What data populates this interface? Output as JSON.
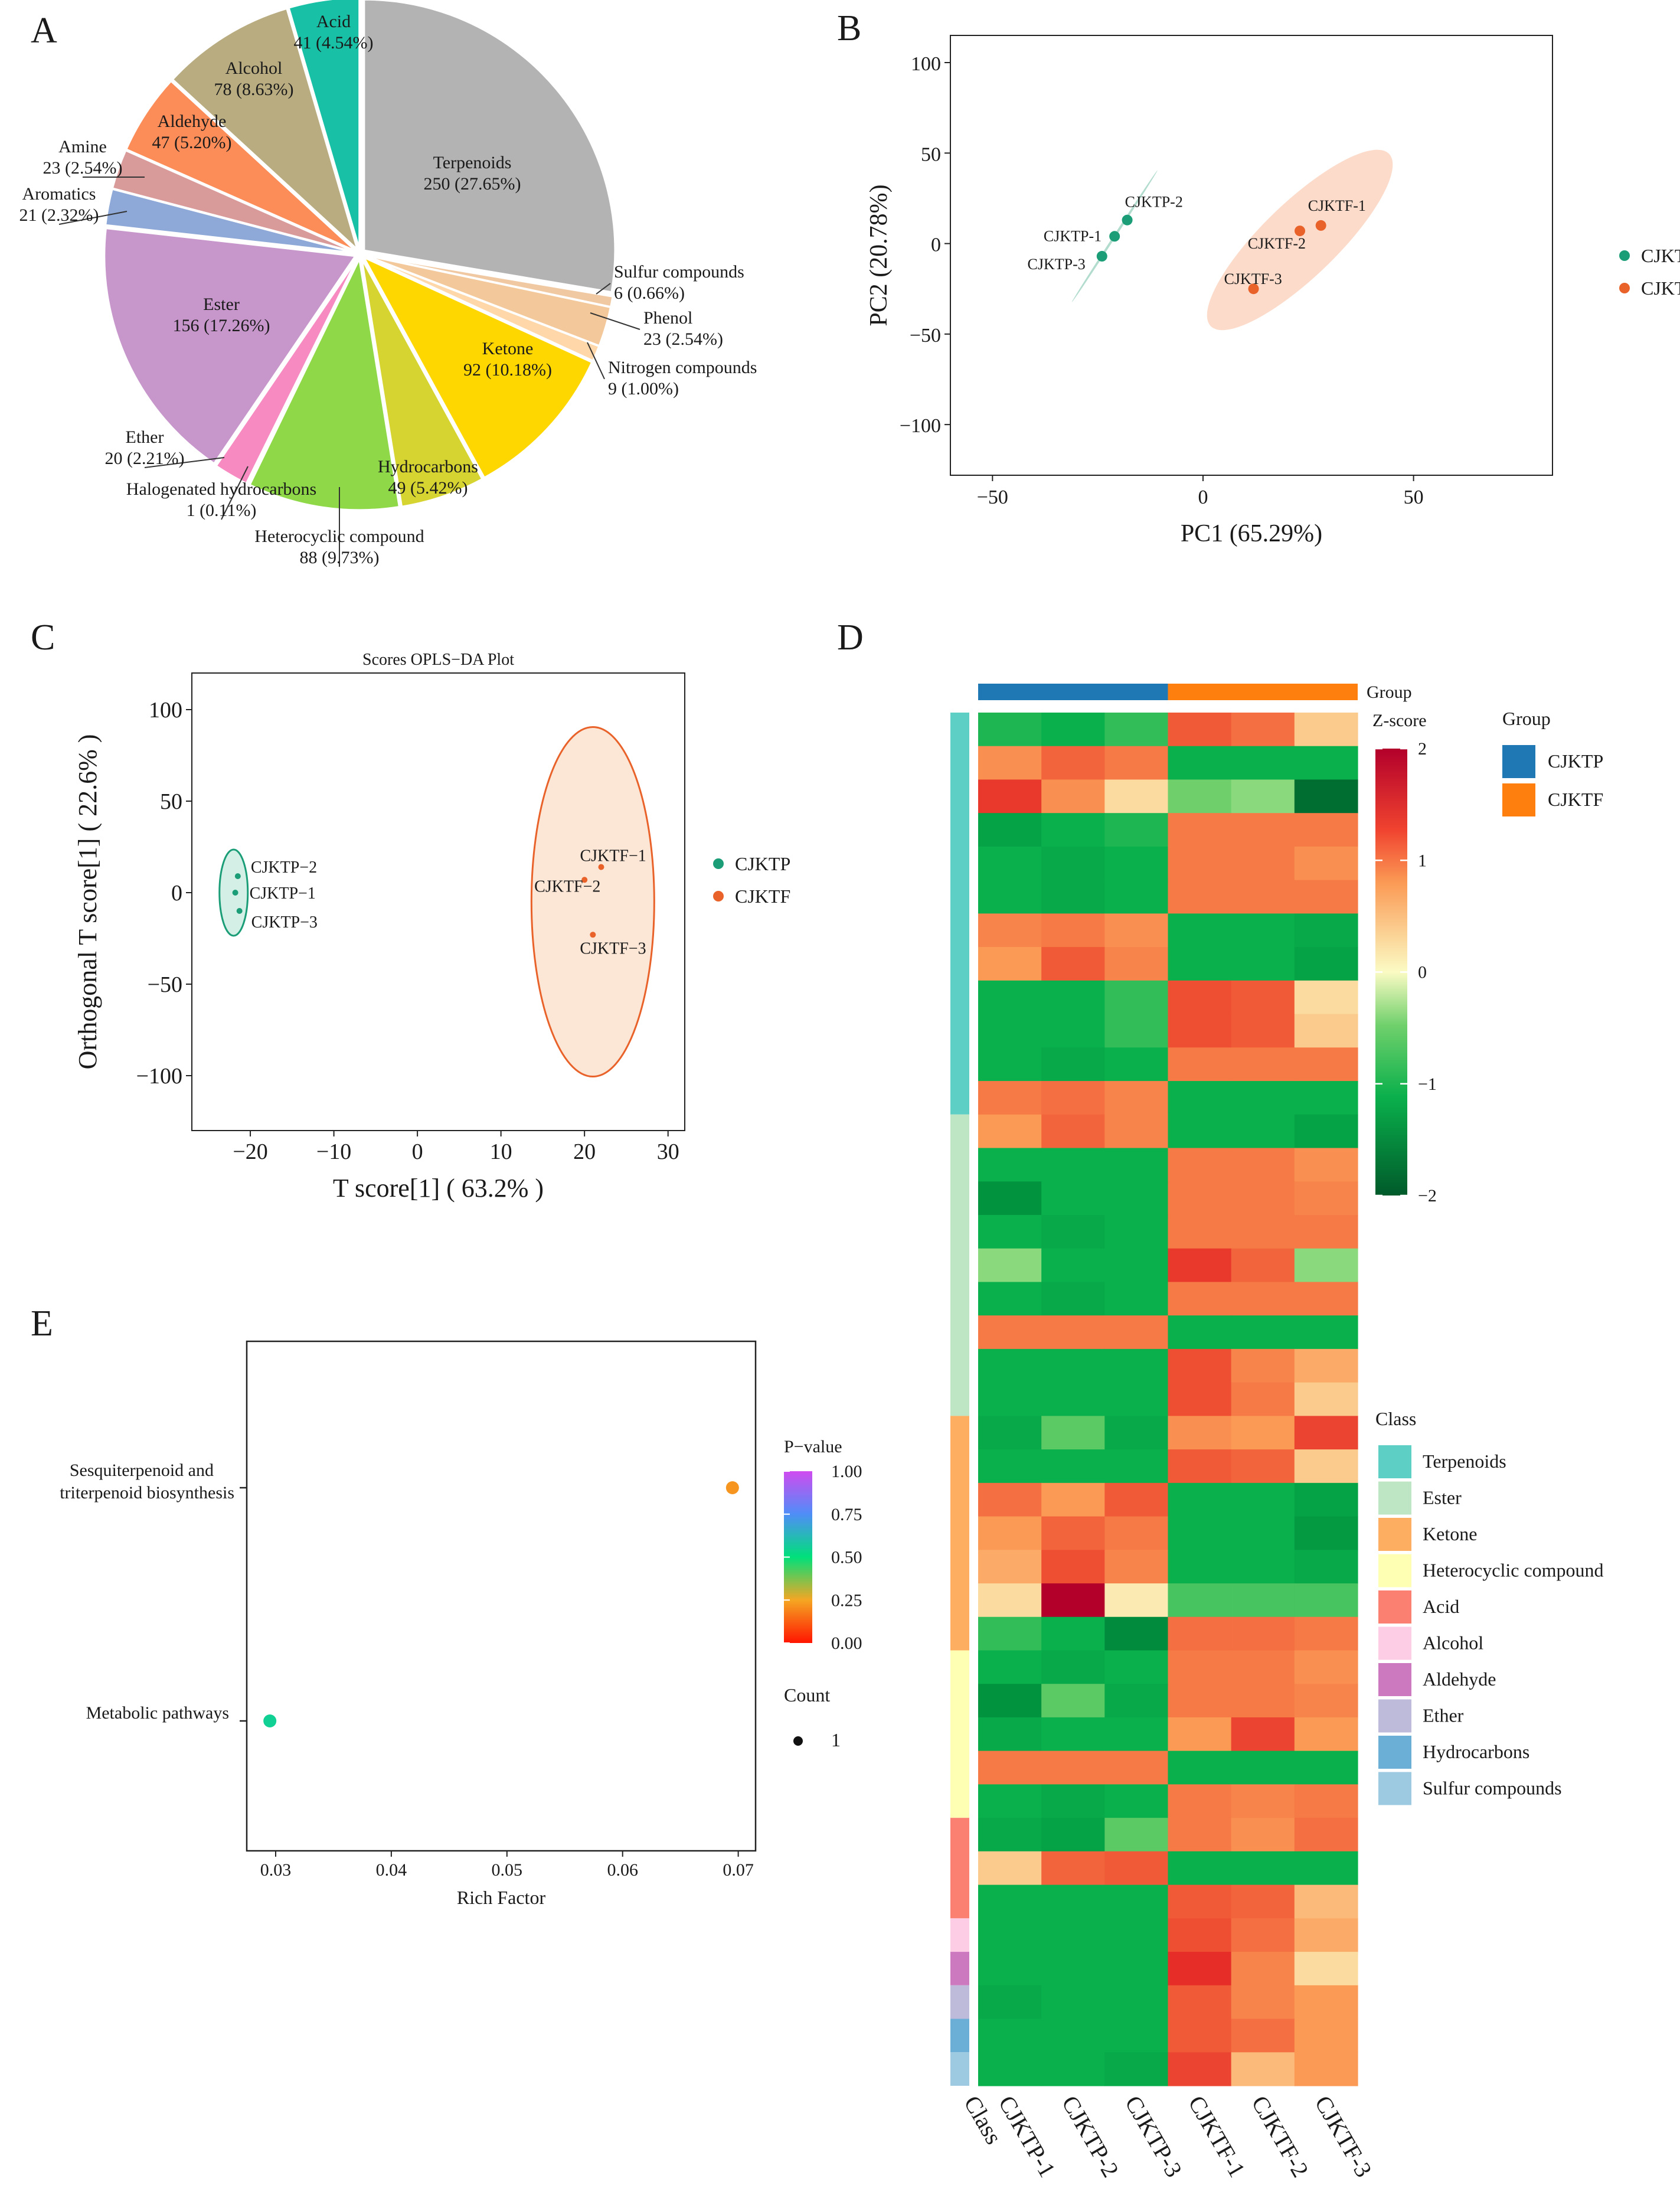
{
  "panels": {
    "a": "A",
    "b": "B",
    "c": "C",
    "d": "D",
    "e": "E"
  },
  "chart_data": [
    {
      "id": "A",
      "type": "pie",
      "slices": [
        {
          "name": "Terpenoids",
          "count": 250,
          "pct": "27.65%",
          "color": "#b3b3b3"
        },
        {
          "name": "Sulfur compounds",
          "count": 6,
          "pct": "0.66%",
          "color": "#f0c9a3"
        },
        {
          "name": "Phenol",
          "count": 23,
          "pct": "2.54%",
          "color": "#f3c89a"
        },
        {
          "name": "Nitrogen compounds",
          "count": 9,
          "pct": "1.00%",
          "color": "#ffd7a8"
        },
        {
          "name": "Ketone",
          "count": 92,
          "pct": "10.18%",
          "color": "#ffd700"
        },
        {
          "name": "Hydrocarbons",
          "count": 49,
          "pct": "5.42%",
          "color": "#d6d431"
        },
        {
          "name": "Heterocyclic compound",
          "count": 88,
          "pct": "9.73%",
          "color": "#8fd848"
        },
        {
          "name": "Halogenated hydrocarbons",
          "count": 1,
          "pct": "0.11%",
          "color": "#f4a6c6"
        },
        {
          "name": "Ether",
          "count": 20,
          "pct": "2.21%",
          "color": "#f78bc1"
        },
        {
          "name": "Ester",
          "count": 156,
          "pct": "17.26%",
          "color": "#c797cc"
        },
        {
          "name": "Aromatics",
          "count": 21,
          "pct": "2.32%",
          "color": "#8ea9d8"
        },
        {
          "name": "Amine",
          "count": 23,
          "pct": "2.54%",
          "color": "#d99a9a"
        },
        {
          "name": "Aldehyde",
          "count": 47,
          "pct": "5.20%",
          "color": "#fc8d59"
        },
        {
          "name": "Alcohol",
          "count": 78,
          "pct": "8.63%",
          "color": "#b8ac80"
        },
        {
          "name": "Acid",
          "count": 41,
          "pct": "4.54%",
          "color": "#18c0a6"
        }
      ]
    },
    {
      "id": "B",
      "type": "scatter",
      "xlabel": "PC1 (65.29%)",
      "ylabel": "PC2 (20.78%)",
      "xlim": [
        -60,
        83
      ],
      "ylim": [
        -128,
        115
      ],
      "xticks": [
        -50,
        0,
        50
      ],
      "yticks": [
        100,
        50,
        0,
        -50,
        -100
      ],
      "xtick_labels": [
        "−50",
        "0",
        "50"
      ],
      "ytick_labels": [
        "100",
        "50",
        "0",
        "−50",
        "−100"
      ],
      "legend": [
        {
          "name": "CJKTP",
          "color": "#1b9e77"
        },
        {
          "name": "CJKTF",
          "color": "#e8622a"
        }
      ],
      "points": [
        {
          "label": "CJKTP-1",
          "x": -21,
          "y": 4,
          "group": 0
        },
        {
          "label": "CJKTP-2",
          "x": -18,
          "y": 13,
          "group": 0
        },
        {
          "label": "CJKTP-3",
          "x": -24,
          "y": -7,
          "group": 0
        },
        {
          "label": "CJKTF-1",
          "x": 28,
          "y": 10,
          "group": 1
        },
        {
          "label": "CJKTF-2",
          "x": 23,
          "y": 7,
          "group": 1
        },
        {
          "label": "CJKTF-3",
          "x": 12,
          "y": -25,
          "group": 1
        }
      ]
    },
    {
      "id": "C",
      "type": "scatter",
      "title": "Scores OPLS−DA Plot",
      "xlabel": "T score[1] ( 63.2% )",
      "ylabel": "Orthogonal T score[1] ( 22.6% )",
      "xlim": [
        -27,
        32
      ],
      "ylim": [
        -130,
        120
      ],
      "xticks": [
        -20,
        -10,
        0,
        10,
        20,
        30
      ],
      "yticks": [
        100,
        50,
        0,
        -50,
        -100
      ],
      "xtick_labels": [
        "−20",
        "−10",
        "0",
        "10",
        "20",
        "30"
      ],
      "ytick_labels": [
        "100",
        "50",
        "0",
        "−50",
        "−100"
      ],
      "legend": [
        {
          "name": "CJKTP",
          "color": "#1b9e77"
        },
        {
          "name": "CJKTF",
          "color": "#e8622a"
        }
      ],
      "points": [
        {
          "label": "CJKTP−2",
          "x": -21.5,
          "y": 9,
          "group": 0
        },
        {
          "label": "CJKTP−1",
          "x": -21.8,
          "y": 0,
          "group": 0
        },
        {
          "label": "CJKTP−3",
          "x": -21.3,
          "y": -10,
          "group": 0
        },
        {
          "label": "CJKTF−1",
          "x": 22,
          "y": 14,
          "group": 1
        },
        {
          "label": "CJKTF−2",
          "x": 20,
          "y": 7,
          "group": 1
        },
        {
          "label": "CJKTF−3",
          "x": 21,
          "y": -23,
          "group": 1
        }
      ]
    },
    {
      "id": "D",
      "type": "heatmap",
      "columns": [
        "CJKTP-1",
        "CJKTP-2",
        "CJKTP-3",
        "CJKTF-1",
        "CJKTF-2",
        "CJKTF-3"
      ],
      "class_axis_label": "Class",
      "group_title": "Group",
      "groups": [
        {
          "name": "CJKTP",
          "color": "#1f78b4"
        },
        {
          "name": "CJKTF",
          "color": "#ff7f0e"
        }
      ],
      "zscore_title": "Z-score",
      "zscore_ticks": [
        2,
        1,
        0,
        -1,
        -2
      ],
      "zscore_tick_labels": [
        "2",
        "1",
        "0",
        "−1",
        "−2"
      ],
      "class_title": "Class",
      "classes": [
        {
          "name": "Terpenoids",
          "color": "#5ecfc4",
          "rows": 12
        },
        {
          "name": "Ester",
          "color": "#bfe6c4",
          "rows": 9
        },
        {
          "name": "Ketone",
          "color": "#fdae61",
          "rows": 7
        },
        {
          "name": "Heterocyclic compound",
          "color": "#ffffb3",
          "rows": 5
        },
        {
          "name": "Acid",
          "color": "#fb8072",
          "rows": 3
        },
        {
          "name": "Alcohol",
          "color": "#fccde5",
          "rows": 1
        },
        {
          "name": "Aldehyde",
          "color": "#cc79c0",
          "rows": 1
        },
        {
          "name": "Ether",
          "color": "#bebada",
          "rows": 1
        },
        {
          "name": "Hydrocarbons",
          "color": "#6baed6",
          "rows": 1
        },
        {
          "name": "Sulfur compounds",
          "color": "#9ecae1",
          "rows": 1
        }
      ],
      "values": [
        [
          -0.9,
          -1.0,
          -0.8,
          1.2,
          1.0,
          0.3
        ],
        [
          0.7,
          1.1,
          0.9,
          -1.0,
          -1.0,
          -1.0
        ],
        [
          1.5,
          0.7,
          0.2,
          -0.5,
          -0.4,
          -1.8
        ],
        [
          -1.2,
          -1.0,
          -0.9,
          0.9,
          0.9,
          0.9
        ],
        [
          -1.0,
          -1.1,
          -1.0,
          0.9,
          0.9,
          0.7
        ],
        [
          -1.0,
          -1.1,
          -1.0,
          0.9,
          0.9,
          0.9
        ],
        [
          0.8,
          0.9,
          0.7,
          -1.0,
          -1.0,
          -1.1
        ],
        [
          0.6,
          1.2,
          0.8,
          -1.0,
          -1.0,
          -1.2
        ],
        [
          -1.0,
          -1.0,
          -0.8,
          1.3,
          1.2,
          0.2
        ],
        [
          -1.0,
          -1.0,
          -0.8,
          1.3,
          1.2,
          0.3
        ],
        [
          -1.0,
          -1.1,
          -1.0,
          0.9,
          0.9,
          0.9
        ],
        [
          0.9,
          1.0,
          0.8,
          -1.0,
          -1.0,
          -1.0
        ],
        [
          0.6,
          1.1,
          0.8,
          -1.0,
          -1.0,
          -1.2
        ],
        [
          -1.0,
          -1.0,
          -1.0,
          0.9,
          0.9,
          0.7
        ],
        [
          -1.4,
          -1.0,
          -1.0,
          0.9,
          0.9,
          0.8
        ],
        [
          -1.0,
          -1.1,
          -1.0,
          0.9,
          0.9,
          0.9
        ],
        [
          -0.4,
          -1.0,
          -1.0,
          1.5,
          1.1,
          -0.4
        ],
        [
          -1.0,
          -1.1,
          -1.0,
          0.9,
          0.9,
          0.9
        ],
        [
          0.9,
          0.9,
          0.9,
          -1.0,
          -1.0,
          -1.0
        ],
        [
          -1.0,
          -1.0,
          -1.0,
          1.3,
          0.8,
          0.5
        ],
        [
          -1.0,
          -1.0,
          -1.0,
          1.3,
          0.9,
          0.3
        ],
        [
          -1.1,
          -0.6,
          -1.1,
          0.7,
          0.6,
          1.4
        ],
        [
          -1.0,
          -1.0,
          -1.0,
          1.2,
          1.1,
          0.3
        ],
        [
          1.0,
          0.6,
          1.2,
          -1.0,
          -1.0,
          -1.2
        ],
        [
          0.6,
          1.1,
          0.9,
          -1.0,
          -1.0,
          -1.3
        ],
        [
          0.5,
          1.3,
          0.8,
          -1.0,
          -1.0,
          -1.1
        ],
        [
          0.2,
          2.2,
          0.1,
          -0.7,
          -0.7,
          -0.7
        ],
        [
          -0.8,
          -1.0,
          -1.5,
          1.0,
          1.0,
          0.9
        ],
        [
          -1.0,
          -1.1,
          -1.0,
          0.9,
          0.9,
          0.7
        ],
        [
          -1.4,
          -0.6,
          -1.1,
          0.9,
          0.9,
          0.8
        ],
        [
          -1.1,
          -1.0,
          -1.0,
          0.6,
          1.4,
          0.6
        ],
        [
          0.9,
          0.9,
          0.9,
          -1.0,
          -1.0,
          -1.0
        ],
        [
          -1.0,
          -1.1,
          -1.0,
          0.9,
          0.8,
          0.9
        ],
        [
          -1.1,
          -1.2,
          -0.6,
          0.9,
          0.7,
          1.0
        ],
        [
          0.3,
          1.1,
          1.2,
          -1.0,
          -1.0,
          -1.0
        ],
        [
          -1.0,
          -1.0,
          -1.0,
          1.2,
          1.1,
          0.4
        ],
        [
          -1.0,
          -1.0,
          -1.0,
          1.3,
          1.0,
          0.5
        ],
        [
          -1.0,
          -1.0,
          -1.0,
          1.6,
          0.8,
          0.2
        ],
        [
          -1.1,
          -1.0,
          -1.0,
          1.2,
          0.8,
          0.6
        ],
        [
          -1.0,
          -1.0,
          -1.0,
          1.2,
          1.0,
          0.6
        ],
        [
          -1.0,
          -1.0,
          -1.1,
          1.4,
          0.4,
          0.6
        ]
      ]
    },
    {
      "id": "E",
      "type": "scatter",
      "xlabel": "Rich Factor",
      "xlim": [
        0.0275,
        0.0715
      ],
      "xticks": [
        0.03,
        0.04,
        0.05,
        0.06,
        0.07
      ],
      "xtick_labels": [
        "0.03",
        "0.04",
        "0.05",
        "0.06",
        "0.07"
      ],
      "categories": [
        {
          "line1": "Sesquiterpenoid and",
          "line2": "triterpenoid biosynthesis"
        },
        {
          "line1": "Metabolic pathways",
          "line2": ""
        }
      ],
      "points": [
        {
          "category": 0,
          "x": 0.0695,
          "pvalue": 0.22,
          "count": 1
        },
        {
          "category": 1,
          "x": 0.0295,
          "pvalue": 0.55,
          "count": 1
        }
      ],
      "pvalue_title": "P−value",
      "pvalue_ticks": [
        1.0,
        0.75,
        0.5,
        0.25,
        0.0
      ],
      "pvalue_tick_labels": [
        "1.00",
        "0.75",
        "0.50",
        "0.25",
        "0.00"
      ],
      "count_title": "Count",
      "count_label": "1"
    }
  ]
}
